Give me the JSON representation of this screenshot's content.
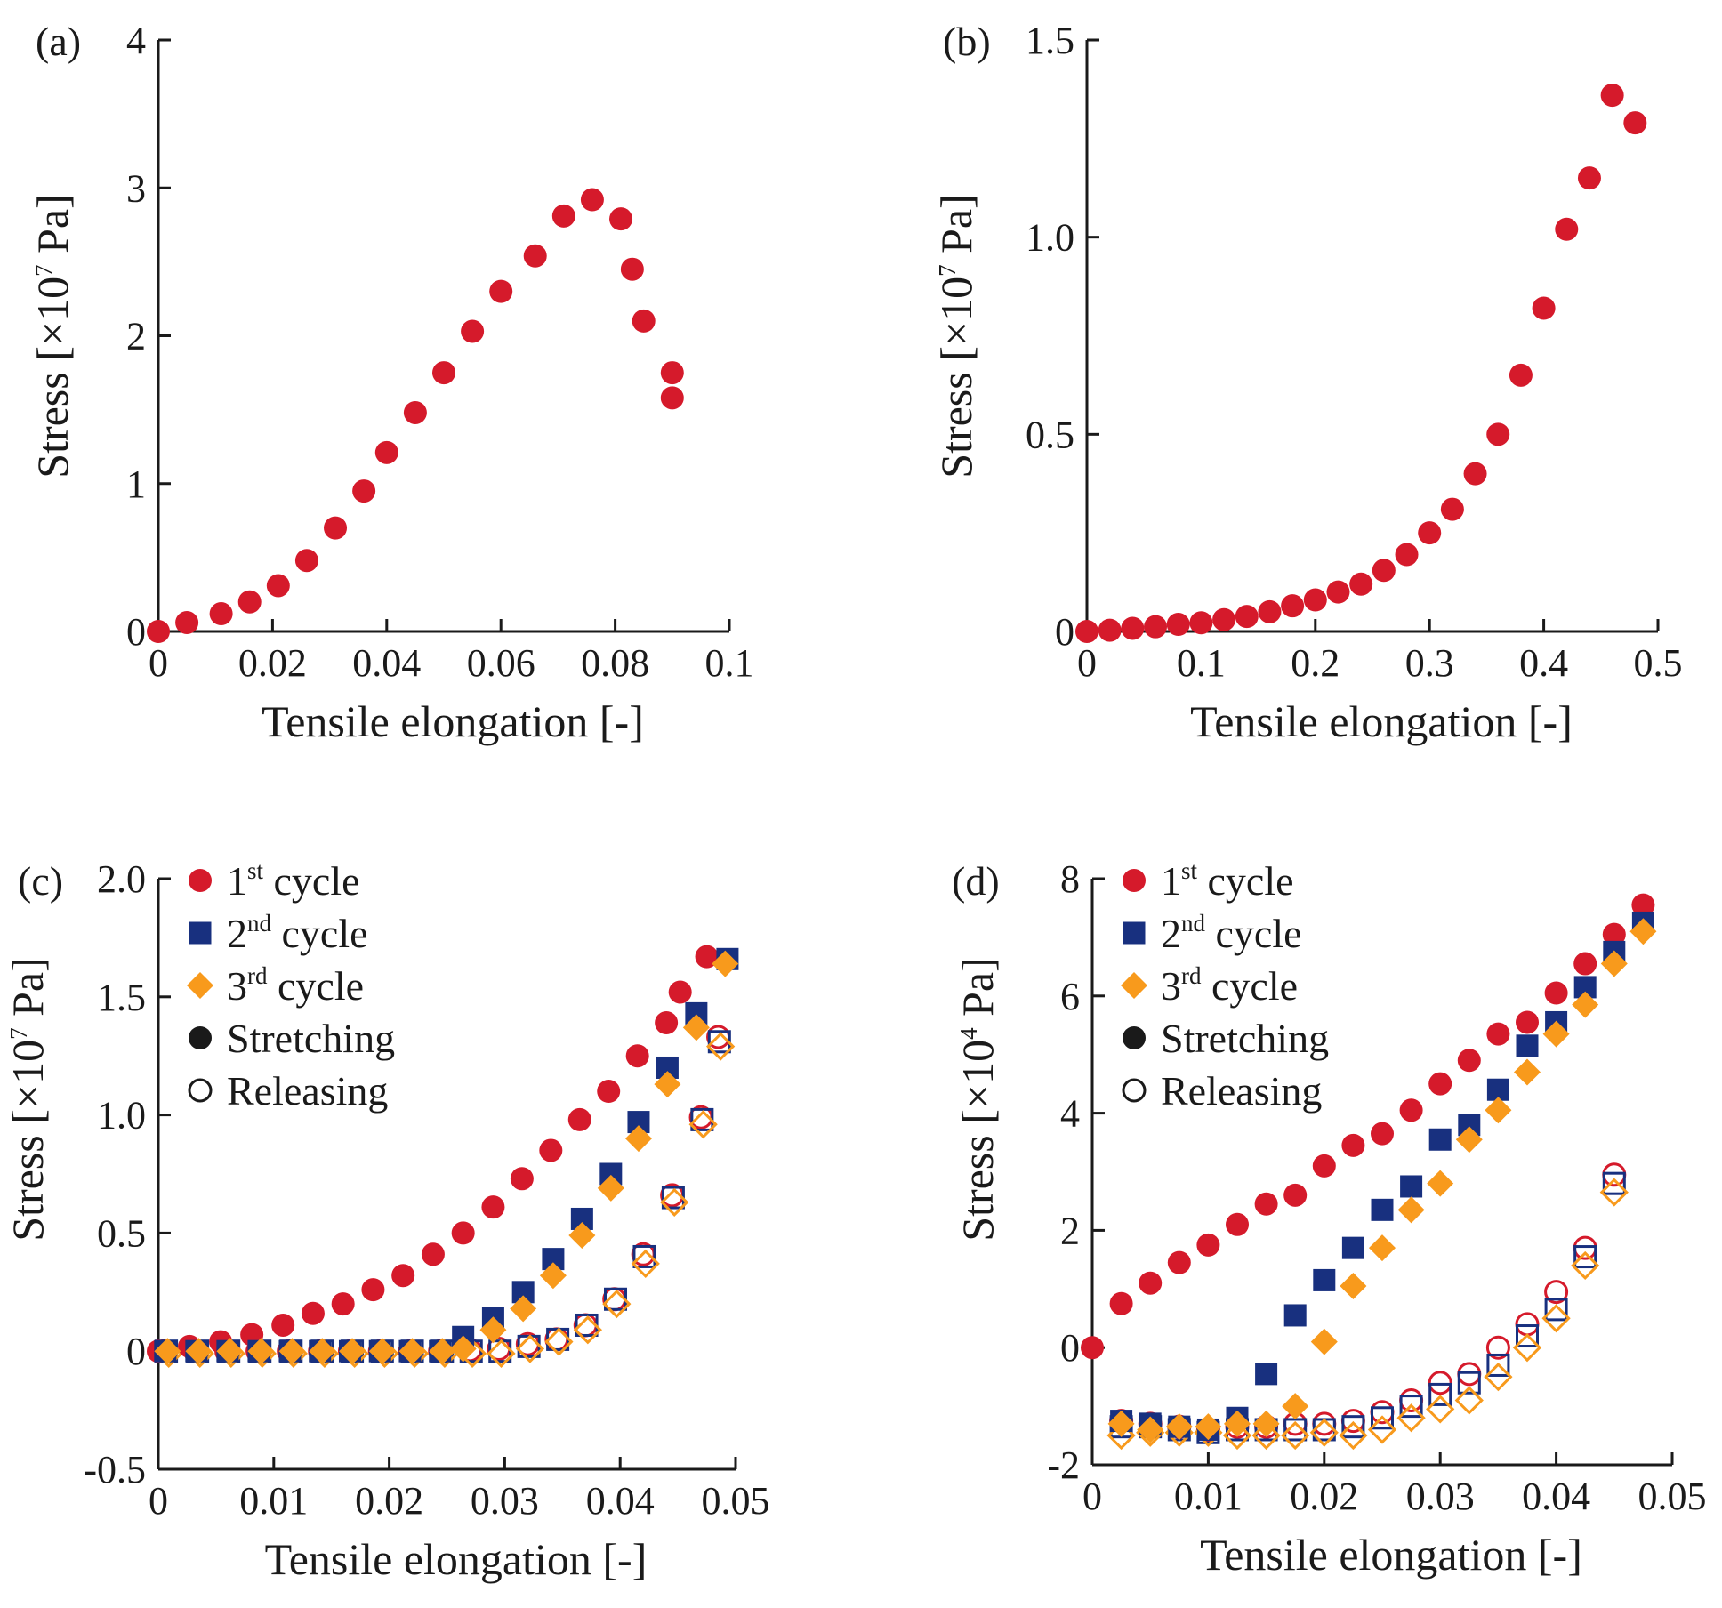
{
  "colors": {
    "cycle1": "#d51a2b",
    "cycle2": "#18307f",
    "cycle3": "#f89a1c",
    "axis": "#1a1a1a"
  },
  "chart_data": [
    {
      "id": "a",
      "type": "scatter",
      "panel_label": "(a)",
      "xlabel": "Tensile elongation [-]",
      "ylabel_prefix": "Stress [×10",
      "ylabel_exp": "7",
      "ylabel_suffix": " Pa]",
      "xlim": [
        0,
        0.1
      ],
      "ylim": [
        0,
        4
      ],
      "xticks": [
        0,
        0.02,
        0.04,
        0.06,
        0.08,
        0.1
      ],
      "xtick_labels": [
        "0",
        "0.02",
        "0.04",
        "0.06",
        "0.08",
        "0.1"
      ],
      "yticks": [
        0,
        1,
        2,
        3,
        4
      ],
      "ytick_labels": [
        "0",
        "1",
        "2",
        "3",
        "4"
      ],
      "legend": [],
      "series": [
        {
          "name": "Stress",
          "color": "cycle1",
          "marker": "circle",
          "fill": "filled",
          "x": [
            0,
            0.005,
            0.011,
            0.016,
            0.021,
            0.026,
            0.031,
            0.036,
            0.04,
            0.045,
            0.05,
            0.055,
            0.06,
            0.066,
            0.071,
            0.076,
            0.081,
            0.083,
            0.085,
            0.09,
            0.09
          ],
          "y": [
            0,
            0.06,
            0.12,
            0.2,
            0.31,
            0.48,
            0.7,
            0.95,
            1.21,
            1.48,
            1.75,
            2.03,
            2.3,
            2.54,
            2.81,
            2.92,
            2.79,
            2.45,
            2.1,
            1.75,
            1.58
          ]
        }
      ]
    },
    {
      "id": "b",
      "type": "scatter",
      "panel_label": "(b)",
      "xlabel": "Tensile elongation [-]",
      "ylabel_prefix": "Stress [×10",
      "ylabel_exp": "7",
      "ylabel_suffix": " Pa]",
      "xlim": [
        0,
        0.5
      ],
      "ylim": [
        0,
        1.5
      ],
      "xticks": [
        0,
        0.1,
        0.2,
        0.3,
        0.4,
        0.5
      ],
      "xtick_labels": [
        "0",
        "0.1",
        "0.2",
        "0.3",
        "0.4",
        "0.5"
      ],
      "yticks": [
        0,
        0.5,
        1.0,
        1.5
      ],
      "ytick_labels": [
        "0",
        "0.5",
        "1.0",
        "1.5"
      ],
      "legend": [],
      "series": [
        {
          "name": "Stress",
          "color": "cycle1",
          "marker": "circle",
          "fill": "filled",
          "x": [
            0,
            0.02,
            0.04,
            0.06,
            0.08,
            0.1,
            0.12,
            0.14,
            0.16,
            0.18,
            0.2,
            0.22,
            0.24,
            0.26,
            0.28,
            0.3,
            0.32,
            0.34,
            0.36,
            0.38,
            0.4,
            0.42,
            0.44,
            0.46,
            0.48
          ],
          "y": [
            0,
            0.003,
            0.008,
            0.012,
            0.018,
            0.022,
            0.03,
            0.038,
            0.05,
            0.065,
            0.08,
            0.1,
            0.12,
            0.155,
            0.195,
            0.25,
            0.31,
            0.4,
            0.5,
            0.65,
            0.82,
            1.02,
            1.15,
            1.36,
            1.29
          ]
        }
      ]
    },
    {
      "id": "c",
      "type": "scatter",
      "panel_label": "(c)",
      "xlabel": "Tensile elongation [-]",
      "ylabel_prefix": "Stress [×10",
      "ylabel_exp": "7",
      "ylabel_suffix": " Pa]",
      "xlim": [
        0,
        0.05
      ],
      "ylim": [
        -0.5,
        2.0
      ],
      "xticks": [
        0,
        0.01,
        0.02,
        0.03,
        0.04,
        0.05
      ],
      "xtick_labels": [
        "0",
        "0.01",
        "0.02",
        "0.03",
        "0.04",
        "0.05"
      ],
      "yticks": [
        -0.5,
        0,
        0.5,
        1.0,
        1.5,
        2.0
      ],
      "ytick_labels": [
        "-0.5",
        "0",
        "0.5",
        "1.0",
        "1.5",
        "2.0"
      ],
      "legend": [
        {
          "marker": "circle",
          "fill": "filled",
          "color": "cycle1",
          "base": "1",
          "sup": "st",
          "rest": " cycle"
        },
        {
          "marker": "square",
          "fill": "filled",
          "color": "cycle2",
          "base": "2",
          "sup": "nd",
          "rest": " cycle"
        },
        {
          "marker": "diamond",
          "fill": "filled",
          "color": "cycle3",
          "base": "3",
          "sup": "rd",
          "rest": " cycle"
        },
        {
          "marker": "circle",
          "fill": "filled",
          "color": "axis",
          "base": "Stretching",
          "sup": "",
          "rest": ""
        },
        {
          "marker": "circle",
          "fill": "open",
          "color": "axis",
          "base": "Releasing",
          "sup": "",
          "rest": ""
        }
      ],
      "series": [
        {
          "name": "1st cycle releasing",
          "color": "cycle1",
          "marker": "circle",
          "fill": "open",
          "x": [
            0.0005,
            0.0032,
            0.0059,
            0.0086,
            0.0113,
            0.014,
            0.0166,
            0.0192,
            0.0218,
            0.0244,
            0.027,
            0.0295,
            0.032,
            0.0345,
            0.037,
            0.0395,
            0.042,
            0.0445,
            0.047,
            0.0485
          ],
          "y": [
            0,
            0,
            0,
            0,
            0,
            0,
            0,
            0,
            0,
            0,
            0.005,
            0.01,
            0.03,
            0.05,
            0.11,
            0.22,
            0.41,
            0.66,
            0.99,
            1.33
          ]
        },
        {
          "name": "2nd cycle releasing",
          "color": "cycle2",
          "marker": "square",
          "fill": "open",
          "x": [
            0.0007,
            0.0034,
            0.0061,
            0.0088,
            0.0115,
            0.0142,
            0.0168,
            0.0194,
            0.022,
            0.0246,
            0.0271,
            0.0296,
            0.0321,
            0.0346,
            0.0371,
            0.0396,
            0.0421,
            0.0446,
            0.0471,
            0.0486
          ],
          "y": [
            0,
            0,
            0,
            0,
            0,
            0,
            0,
            0,
            0,
            0,
            0,
            0,
            0.02,
            0.05,
            0.11,
            0.22,
            0.4,
            0.65,
            0.98,
            1.31
          ]
        },
        {
          "name": "3rd cycle releasing",
          "color": "cycle3",
          "marker": "diamond",
          "fill": "open",
          "x": [
            0.0009,
            0.0036,
            0.0063,
            0.009,
            0.0117,
            0.0144,
            0.017,
            0.0196,
            0.0222,
            0.0248,
            0.0272,
            0.0297,
            0.0322,
            0.0347,
            0.0372,
            0.0397,
            0.0422,
            0.0447,
            0.0472,
            0.0487
          ],
          "y": [
            -0.01,
            -0.01,
            -0.01,
            -0.01,
            -0.01,
            -0.01,
            -0.01,
            -0.01,
            -0.01,
            -0.01,
            -0.01,
            -0.01,
            0.01,
            0.04,
            0.09,
            0.2,
            0.37,
            0.63,
            0.96,
            1.29
          ]
        },
        {
          "name": "1st cycle stretching",
          "color": "cycle1",
          "marker": "circle",
          "fill": "filled",
          "x": [
            0,
            0.0027,
            0.0054,
            0.0081,
            0.0108,
            0.0134,
            0.016,
            0.0186,
            0.0212,
            0.0238,
            0.0264,
            0.029,
            0.0315,
            0.034,
            0.0365,
            0.039,
            0.0415,
            0.044,
            0.0452,
            0.0475
          ],
          "y": [
            0,
            0.02,
            0.04,
            0.07,
            0.11,
            0.16,
            0.2,
            0.26,
            0.32,
            0.41,
            0.5,
            0.61,
            0.73,
            0.85,
            0.98,
            1.1,
            1.25,
            1.39,
            1.52,
            1.67
          ]
        },
        {
          "name": "2nd cycle stretching",
          "color": "cycle2",
          "marker": "square",
          "fill": "filled",
          "x": [
            0.0006,
            0.0033,
            0.006,
            0.0087,
            0.0114,
            0.014,
            0.0166,
            0.0192,
            0.0218,
            0.0244,
            0.0264,
            0.029,
            0.0316,
            0.0342,
            0.0367,
            0.0392,
            0.0416,
            0.0441,
            0.0466,
            0.0493
          ],
          "y": [
            0,
            0,
            0,
            0,
            0,
            0,
            0,
            0,
            0,
            0,
            0.06,
            0.14,
            0.25,
            0.39,
            0.56,
            0.75,
            0.97,
            1.2,
            1.43,
            1.66
          ]
        },
        {
          "name": "3rd cycle stretching",
          "color": "cycle3",
          "marker": "diamond",
          "fill": "filled",
          "x": [
            0.0008,
            0.0035,
            0.0062,
            0.0089,
            0.0116,
            0.0142,
            0.0168,
            0.0194,
            0.022,
            0.0246,
            0.0264,
            0.029,
            0.0316,
            0.0342,
            0.0367,
            0.0392,
            0.0416,
            0.0441,
            0.0466,
            0.0491
          ],
          "y": [
            0,
            0,
            0,
            0,
            0,
            0,
            0,
            0,
            0,
            0,
            0.01,
            0.09,
            0.18,
            0.32,
            0.49,
            0.69,
            0.9,
            1.13,
            1.37,
            1.64
          ]
        }
      ]
    },
    {
      "id": "d",
      "type": "scatter",
      "panel_label": "(d)",
      "xlabel": "Tensile elongation [-]",
      "ylabel_prefix": "Stress [×10",
      "ylabel_exp": "4",
      "ylabel_suffix": " Pa]",
      "xlim": [
        0,
        0.05
      ],
      "ylim": [
        -2,
        8
      ],
      "xticks": [
        0,
        0.01,
        0.02,
        0.03,
        0.04,
        0.05
      ],
      "xtick_labels": [
        "0",
        "0.01",
        "0.02",
        "0.03",
        "0.04",
        "0.05"
      ],
      "yticks": [
        -2,
        0,
        2,
        4,
        6,
        8
      ],
      "ytick_labels": [
        "-2",
        "0",
        "2",
        "4",
        "6",
        "8"
      ],
      "legend": [
        {
          "marker": "circle",
          "fill": "filled",
          "color": "cycle1",
          "base": "1",
          "sup": "st",
          "rest": " cycle"
        },
        {
          "marker": "square",
          "fill": "filled",
          "color": "cycle2",
          "base": "2",
          "sup": "nd",
          "rest": " cycle"
        },
        {
          "marker": "diamond",
          "fill": "filled",
          "color": "cycle3",
          "base": "3",
          "sup": "rd",
          "rest": " cycle"
        },
        {
          "marker": "circle",
          "fill": "filled",
          "color": "axis",
          "base": "Stretching",
          "sup": "",
          "rest": ""
        },
        {
          "marker": "circle",
          "fill": "open",
          "color": "axis",
          "base": "Releasing",
          "sup": "",
          "rest": ""
        }
      ],
      "series": [
        {
          "name": "1st cycle releasing",
          "color": "cycle1",
          "marker": "circle",
          "fill": "open",
          "x": [
            0.0025,
            0.005,
            0.0075,
            0.01,
            0.0125,
            0.015,
            0.0175,
            0.02,
            0.0225,
            0.025,
            0.0275,
            0.03,
            0.0325,
            0.035,
            0.0375,
            0.04,
            0.0425,
            0.045
          ],
          "y": [
            -1.25,
            -1.3,
            -1.35,
            -1.4,
            -1.35,
            -1.35,
            -1.3,
            -1.3,
            -1.25,
            -1.1,
            -0.9,
            -0.6,
            -0.45,
            0.0,
            0.4,
            0.95,
            1.7,
            2.95
          ]
        },
        {
          "name": "2nd cycle releasing",
          "color": "cycle2",
          "marker": "square",
          "fill": "open",
          "x": [
            0.0025,
            0.005,
            0.0075,
            0.01,
            0.0125,
            0.015,
            0.0175,
            0.02,
            0.0225,
            0.025,
            0.0275,
            0.03,
            0.0325,
            0.035,
            0.0375,
            0.04,
            0.0425,
            0.045
          ],
          "y": [
            -1.35,
            -1.35,
            -1.4,
            -1.45,
            -1.4,
            -1.4,
            -1.4,
            -1.4,
            -1.35,
            -1.2,
            -1.0,
            -0.8,
            -0.6,
            -0.3,
            0.2,
            0.65,
            1.55,
            2.8
          ]
        },
        {
          "name": "3rd cycle releasing",
          "color": "cycle3",
          "marker": "diamond",
          "fill": "open",
          "x": [
            0.0025,
            0.005,
            0.0075,
            0.01,
            0.0125,
            0.015,
            0.0175,
            0.02,
            0.0225,
            0.025,
            0.0275,
            0.03,
            0.0325,
            0.035,
            0.0375,
            0.04,
            0.0425,
            0.045
          ],
          "y": [
            -1.5,
            -1.45,
            -1.45,
            -1.45,
            -1.5,
            -1.5,
            -1.5,
            -1.45,
            -1.5,
            -1.4,
            -1.2,
            -1.05,
            -0.9,
            -0.5,
            0.0,
            0.5,
            1.4,
            2.65
          ]
        },
        {
          "name": "1st cycle stretching",
          "color": "cycle1",
          "marker": "circle",
          "fill": "filled",
          "x": [
            0,
            0.0025,
            0.005,
            0.0075,
            0.01,
            0.0125,
            0.015,
            0.0175,
            0.02,
            0.0225,
            0.025,
            0.0275,
            0.03,
            0.0325,
            0.035,
            0.0375,
            0.04,
            0.0425,
            0.045,
            0.0475
          ],
          "y": [
            0.0,
            0.75,
            1.1,
            1.45,
            1.75,
            2.1,
            2.45,
            2.6,
            3.1,
            3.45,
            3.65,
            4.05,
            4.5,
            4.9,
            5.35,
            5.55,
            6.05,
            6.55,
            7.05,
            7.55
          ]
        },
        {
          "name": "2nd cycle stretching",
          "color": "cycle2",
          "marker": "square",
          "fill": "filled",
          "x": [
            0.0025,
            0.005,
            0.0075,
            0.01,
            0.0125,
            0.015,
            0.0175,
            0.02,
            0.0225,
            0.025,
            0.0275,
            0.03,
            0.0325,
            0.035,
            0.0375,
            0.04,
            0.0425,
            0.045,
            0.0475
          ],
          "y": [
            -1.25,
            -1.3,
            -1.35,
            -1.4,
            -1.2,
            -0.45,
            0.55,
            1.15,
            1.7,
            2.35,
            2.75,
            3.55,
            3.8,
            4.4,
            5.15,
            5.55,
            6.15,
            6.75,
            7.25
          ]
        },
        {
          "name": "3rd cycle stretching",
          "color": "cycle3",
          "marker": "diamond",
          "fill": "filled",
          "x": [
            0.0025,
            0.005,
            0.0075,
            0.01,
            0.0125,
            0.015,
            0.0175,
            0.02,
            0.0225,
            0.025,
            0.0275,
            0.03,
            0.0325,
            0.035,
            0.0375,
            0.04,
            0.0425,
            0.045,
            0.0475
          ],
          "y": [
            -1.3,
            -1.4,
            -1.35,
            -1.35,
            -1.3,
            -1.3,
            -1.0,
            0.1,
            1.05,
            1.7,
            2.35,
            2.8,
            3.55,
            4.05,
            4.7,
            5.35,
            5.85,
            6.55,
            7.1
          ]
        }
      ]
    }
  ]
}
